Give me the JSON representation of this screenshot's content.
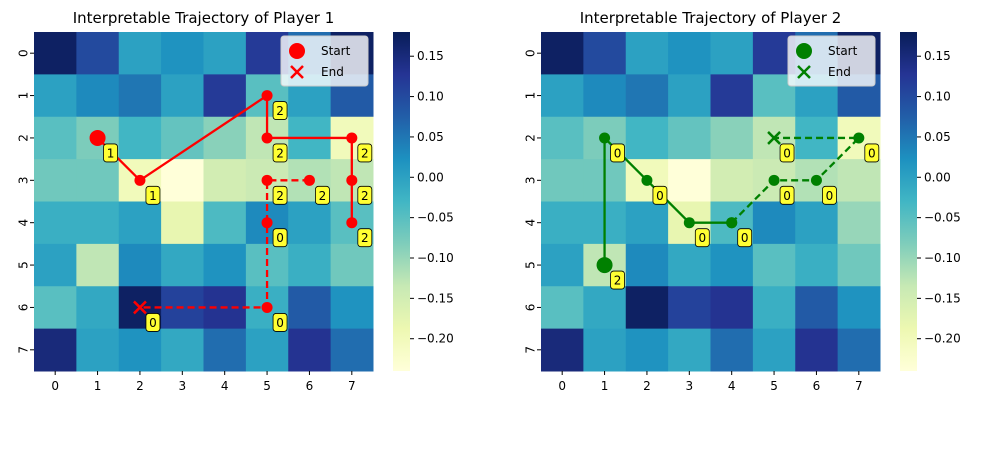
{
  "chart_data": [
    {
      "type": "heatmap",
      "title": "Interpretable Trajectory of Player 1",
      "x_tick_labels": [
        "0",
        "1",
        "2",
        "3",
        "4",
        "5",
        "6",
        "7"
      ],
      "y_tick_labels": [
        "0",
        "1",
        "2",
        "3",
        "4",
        "5",
        "6",
        "7"
      ],
      "colormap": "YlGnBu",
      "color_range": [
        -0.24,
        0.18
      ],
      "colorbar_ticks": [
        "0.15",
        "0.10",
        "0.05",
        "0.00",
        "−0.05",
        "−0.10",
        "−0.15",
        "−0.20"
      ],
      "heatmap_values": [
        [
          0.17,
          0.1,
          0.0,
          0.02,
          0.0,
          0.12,
          0.06,
          0.17
        ],
        [
          0.0,
          0.03,
          0.05,
          0.0,
          0.12,
          -0.05,
          0.0,
          0.08
        ],
        [
          -0.05,
          -0.08,
          -0.03,
          -0.06,
          -0.09,
          -0.13,
          -0.03,
          -0.2
        ],
        [
          -0.07,
          -0.07,
          -0.2,
          -0.24,
          -0.15,
          -0.14,
          -0.12,
          -0.13
        ],
        [
          -0.02,
          -0.02,
          0.0,
          -0.18,
          -0.04,
          0.03,
          0.0,
          -0.05
        ],
        [
          0.0,
          -0.13,
          0.03,
          -0.01,
          0.02,
          -0.05,
          -0.02,
          -0.07
        ],
        [
          -0.05,
          -0.01,
          0.17,
          0.11,
          0.13,
          -0.02,
          0.08,
          0.02
        ],
        [
          0.15,
          0.0,
          0.02,
          -0.01,
          0.06,
          0.0,
          0.13,
          0.06
        ]
      ],
      "line_color": "#ff0000",
      "legend": [
        "Start",
        "End"
      ],
      "legend_position": "upper right",
      "trajectory_solid": [
        {
          "x": 1,
          "y": 2,
          "label": "1"
        },
        {
          "x": 2,
          "y": 3,
          "label": "1"
        },
        {
          "x": 5,
          "y": 1,
          "label": "2"
        },
        {
          "x": 5,
          "y": 2,
          "label": "2"
        },
        {
          "x": 7,
          "y": 2,
          "label": "2"
        },
        {
          "x": 7,
          "y": 3,
          "label": "2"
        },
        {
          "x": 7,
          "y": 4,
          "label": "2"
        }
      ],
      "trajectory_dashed": [
        {
          "x": 6,
          "y": 3,
          "label": "2"
        },
        {
          "x": 5,
          "y": 3,
          "label": "2"
        },
        {
          "x": 5,
          "y": 4,
          "label": "0"
        },
        {
          "x": 5,
          "y": 6,
          "label": "0"
        },
        {
          "x": 2,
          "y": 6,
          "label": "0"
        }
      ],
      "start": {
        "x": 1,
        "y": 2
      },
      "end": {
        "x": 2,
        "y": 6
      }
    },
    {
      "type": "heatmap",
      "title": "Interpretable Trajectory of Player 2",
      "x_tick_labels": [
        "0",
        "1",
        "2",
        "3",
        "4",
        "5",
        "6",
        "7"
      ],
      "y_tick_labels": [
        "0",
        "1",
        "2",
        "3",
        "4",
        "5",
        "6",
        "7"
      ],
      "colormap": "YlGnBu",
      "color_range": [
        -0.24,
        0.18
      ],
      "colorbar_ticks": [
        "0.15",
        "0.10",
        "0.05",
        "0.00",
        "−0.05",
        "−0.10",
        "−0.15",
        "−0.20"
      ],
      "heatmap_values": [
        [
          0.17,
          0.1,
          0.0,
          0.02,
          0.0,
          0.12,
          0.06,
          0.17
        ],
        [
          0.0,
          0.03,
          0.05,
          0.0,
          0.12,
          -0.05,
          0.0,
          0.08
        ],
        [
          -0.05,
          -0.08,
          -0.03,
          -0.06,
          -0.09,
          -0.13,
          -0.03,
          -0.2
        ],
        [
          -0.07,
          -0.07,
          -0.2,
          -0.24,
          -0.15,
          -0.14,
          -0.12,
          -0.13
        ],
        [
          -0.02,
          -0.02,
          0.0,
          -0.18,
          -0.04,
          0.03,
          0.0,
          -0.1
        ],
        [
          0.0,
          -0.13,
          0.03,
          -0.01,
          0.02,
          -0.05,
          -0.02,
          -0.07
        ],
        [
          -0.05,
          -0.01,
          0.17,
          0.11,
          0.13,
          -0.02,
          0.08,
          0.02
        ],
        [
          0.15,
          0.0,
          0.02,
          -0.01,
          0.06,
          0.0,
          0.13,
          0.06
        ]
      ],
      "line_color": "#008000",
      "legend": [
        "Start",
        "End"
      ],
      "legend_position": "upper right",
      "trajectory_solid": [
        {
          "x": 1,
          "y": 5,
          "label": "2"
        },
        {
          "x": 1,
          "y": 2,
          "label": "0"
        },
        {
          "x": 2,
          "y": 3,
          "label": "0"
        },
        {
          "x": 3,
          "y": 4,
          "label": "0"
        },
        {
          "x": 4,
          "y": 4,
          "label": "0"
        }
      ],
      "trajectory_dashed": [
        {
          "x": 4,
          "y": 4,
          "label": null
        },
        {
          "x": 5,
          "y": 3,
          "label": "0"
        },
        {
          "x": 6,
          "y": 3,
          "label": "0"
        },
        {
          "x": 7,
          "y": 2,
          "label": "0"
        },
        {
          "x": 5,
          "y": 2,
          "label": "0"
        }
      ],
      "start": {
        "x": 1,
        "y": 5
      },
      "end": {
        "x": 5,
        "y": 2
      }
    }
  ]
}
